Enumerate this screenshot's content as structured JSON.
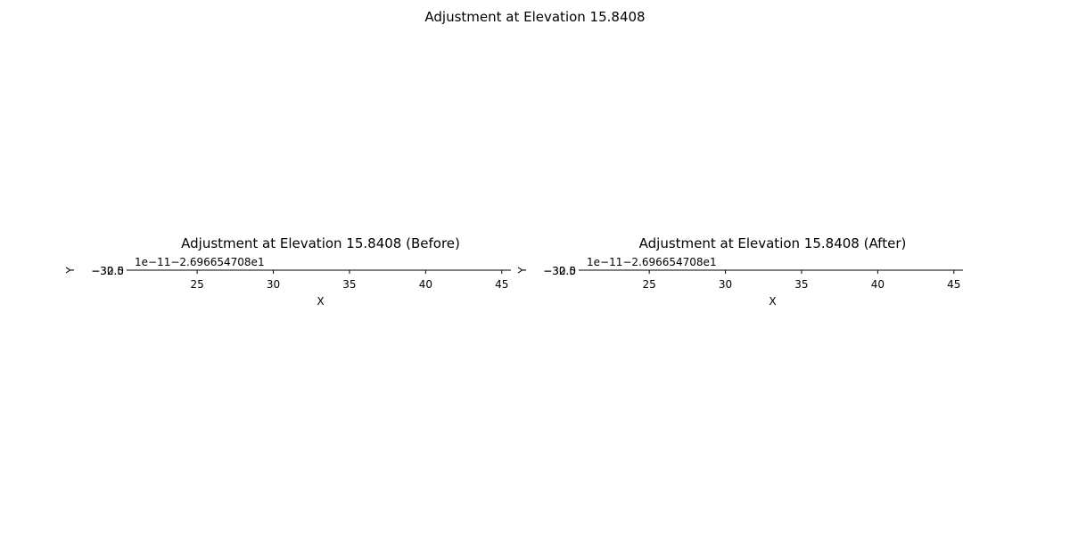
{
  "figure": {
    "title": "Adjustment at Elevation 15.8408",
    "background": "#ffffff",
    "axis_color": "#000000"
  },
  "chart_data": [
    {
      "type": "scatter",
      "title": "Adjustment at Elevation 15.8408 (Before)",
      "xlabel": "X",
      "ylabel": "Y",
      "xlim": [
        20.6,
        45.6
      ],
      "xticks": [
        25,
        30,
        35,
        40,
        45
      ],
      "xtick_labels": [
        "25",
        "30",
        "35",
        "40",
        "45"
      ],
      "ytick_labels": [
        "−30.0",
        "−32.5"
      ],
      "offset_text": "1e−11−2.696654708e1",
      "grid": false,
      "series": []
    },
    {
      "type": "scatter",
      "title": "Adjustment at Elevation 15.8408 (After)",
      "xlabel": "X",
      "ylabel": "Y",
      "xlim": [
        20.6,
        45.6
      ],
      "xticks": [
        25,
        30,
        35,
        40,
        45
      ],
      "xtick_labels": [
        "25",
        "30",
        "35",
        "40",
        "45"
      ],
      "ytick_labels": [
        "−30.0",
        "−32.5"
      ],
      "offset_text": "1e−11−2.696654708e1",
      "grid": false,
      "series": []
    }
  ]
}
